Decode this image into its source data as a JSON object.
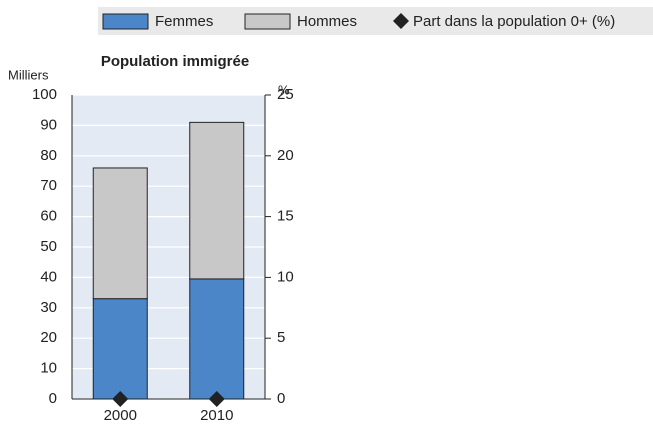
{
  "chart_data": {
    "type": "bar",
    "stacked": true,
    "title": "Population immigrée",
    "y_label": "Milliers",
    "y2_label": "%",
    "categories": [
      "2000",
      "2010"
    ],
    "series": [
      {
        "name": "Femmes",
        "color": "#4a86c8",
        "values": [
          33,
          39.5
        ]
      },
      {
        "name": "Hommes",
        "color": "#c8c8c8",
        "values": [
          43,
          51.5
        ]
      },
      {
        "name": "Part dans la population 0+ (%)",
        "type": "scatter",
        "axis": "y2",
        "color": "#222222",
        "values": [
          0,
          0
        ]
      }
    ],
    "ylim": [
      0,
      100
    ],
    "yticks": [
      0,
      10,
      20,
      30,
      40,
      50,
      60,
      70,
      80,
      90,
      100
    ],
    "y2lim": [
      0,
      25
    ],
    "y2ticks": [
      0,
      5,
      10,
      15,
      20,
      25
    ],
    "grid": true
  }
}
